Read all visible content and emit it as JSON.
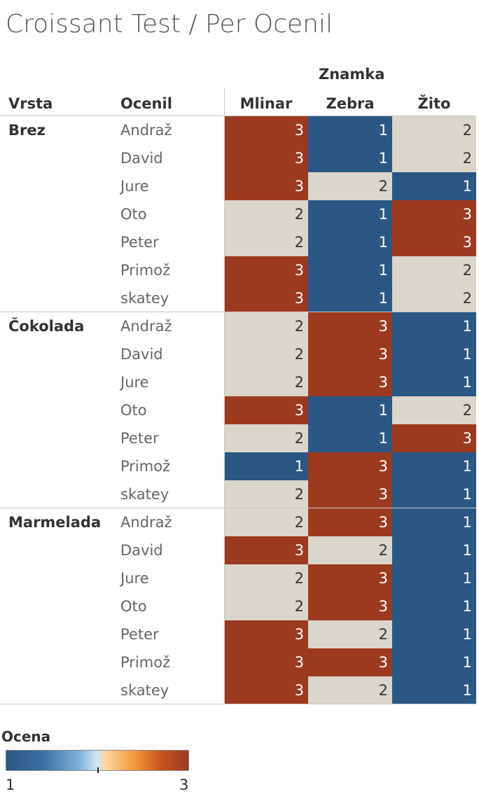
{
  "title": "Croissant Test / Per Ocenil",
  "headers": {
    "column_group": "Znamka",
    "vrsta": "Vrsta",
    "ocenil": "Ocenil"
  },
  "legend": {
    "title": "Ocena",
    "min_label": "1",
    "max_label": "3",
    "colors": {
      "low": "#2a5783",
      "mid": "#dad6cc",
      "high": "#9c3a1f"
    }
  },
  "chart_data": {
    "type": "heatmap",
    "title": "Croissant Test / Per Ocenil",
    "columns": [
      "Mlinar",
      "Zebra",
      "Žito"
    ],
    "groups": [
      {
        "name": "Brez",
        "rows": [
          {
            "ocenil": "Andraž",
            "values": [
              3,
              1,
              2
            ]
          },
          {
            "ocenil": "David",
            "values": [
              3,
              1,
              2
            ]
          },
          {
            "ocenil": "Jure",
            "values": [
              3,
              2,
              1
            ]
          },
          {
            "ocenil": "Oto",
            "values": [
              2,
              1,
              3
            ]
          },
          {
            "ocenil": "Peter",
            "values": [
              2,
              1,
              3
            ]
          },
          {
            "ocenil": "Primož",
            "values": [
              3,
              1,
              2
            ]
          },
          {
            "ocenil": "skatey",
            "values": [
              3,
              1,
              2
            ]
          }
        ]
      },
      {
        "name": "Čokolada",
        "rows": [
          {
            "ocenil": "Andraž",
            "values": [
              2,
              3,
              1
            ]
          },
          {
            "ocenil": "David",
            "values": [
              2,
              3,
              1
            ]
          },
          {
            "ocenil": "Jure",
            "values": [
              2,
              3,
              1
            ]
          },
          {
            "ocenil": "Oto",
            "values": [
              3,
              1,
              2
            ]
          },
          {
            "ocenil": "Peter",
            "values": [
              2,
              1,
              3
            ]
          },
          {
            "ocenil": "Primož",
            "values": [
              1,
              3,
              1
            ]
          },
          {
            "ocenil": "skatey",
            "values": [
              2,
              3,
              1
            ]
          }
        ]
      },
      {
        "name": "Marmelada",
        "rows": [
          {
            "ocenil": "Andraž",
            "values": [
              2,
              3,
              1
            ]
          },
          {
            "ocenil": "David",
            "values": [
              3,
              2,
              1
            ]
          },
          {
            "ocenil": "Jure",
            "values": [
              2,
              3,
              1
            ]
          },
          {
            "ocenil": "Oto",
            "values": [
              2,
              3,
              1
            ]
          },
          {
            "ocenil": "Peter",
            "values": [
              3,
              2,
              1
            ]
          },
          {
            "ocenil": "Primož",
            "values": [
              3,
              3,
              1
            ]
          },
          {
            "ocenil": "skatey",
            "values": [
              3,
              2,
              1
            ]
          }
        ]
      }
    ],
    "color_range": [
      1,
      3
    ]
  }
}
